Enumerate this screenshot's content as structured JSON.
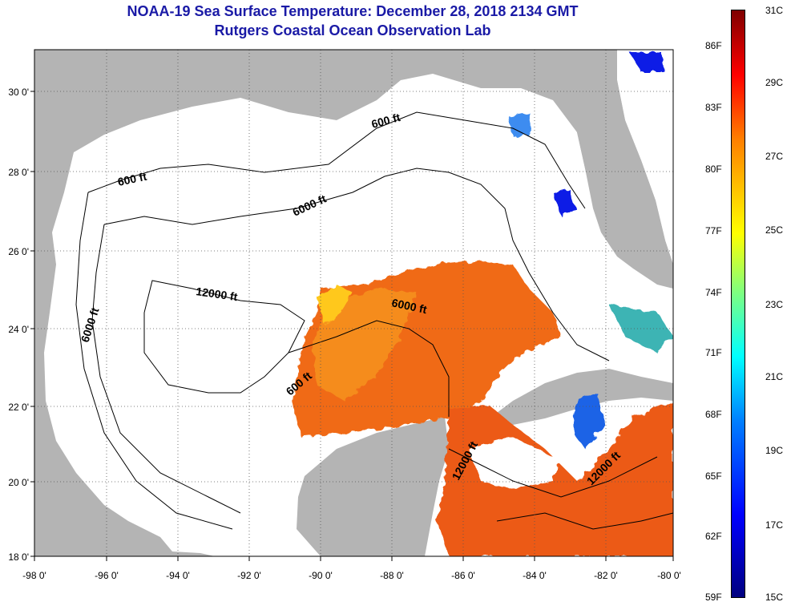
{
  "header": {
    "title": "NOAA-19 Sea Surface Temperature:  December 28, 2018 2134 GMT",
    "subtitle": "Rutgers Coastal Ocean Observation Lab"
  },
  "axes": {
    "latitude_labels": [
      "30 0'",
      "28 0'",
      "26 0'",
      "24 0'",
      "22 0'",
      "20 0'",
      "18 0'"
    ],
    "longitude_labels": [
      "-98 0'",
      "-96 0'",
      "-94 0'",
      "-92 0'",
      "-90 0'",
      "-88 0'",
      "-86 0'",
      "-84 0'",
      "-82 0'",
      "-80 0'"
    ]
  },
  "contour_labels": [
    "600 ft",
    "600 ft",
    "6000 ft",
    "12000 ft",
    "6000 ft",
    "6000 ft",
    "600 ft",
    "12000 ft",
    "12000 ft"
  ],
  "colorbar": {
    "fahrenheit_labels": [
      "86F",
      "83F",
      "80F",
      "77F",
      "74F",
      "71F",
      "68F",
      "65F",
      "62F",
      "59F"
    ],
    "celsius_labels": [
      "31C",
      "29C",
      "27C",
      "25C",
      "23C",
      "21C",
      "19C",
      "17C",
      "15C"
    ]
  },
  "colors": {
    "land": "#b4b4b4",
    "no_data_water": "#ffffff",
    "title_text": "#1a1aa6",
    "warm_sst": "#f06a14",
    "cold_sst": "#0a1ee6"
  }
}
